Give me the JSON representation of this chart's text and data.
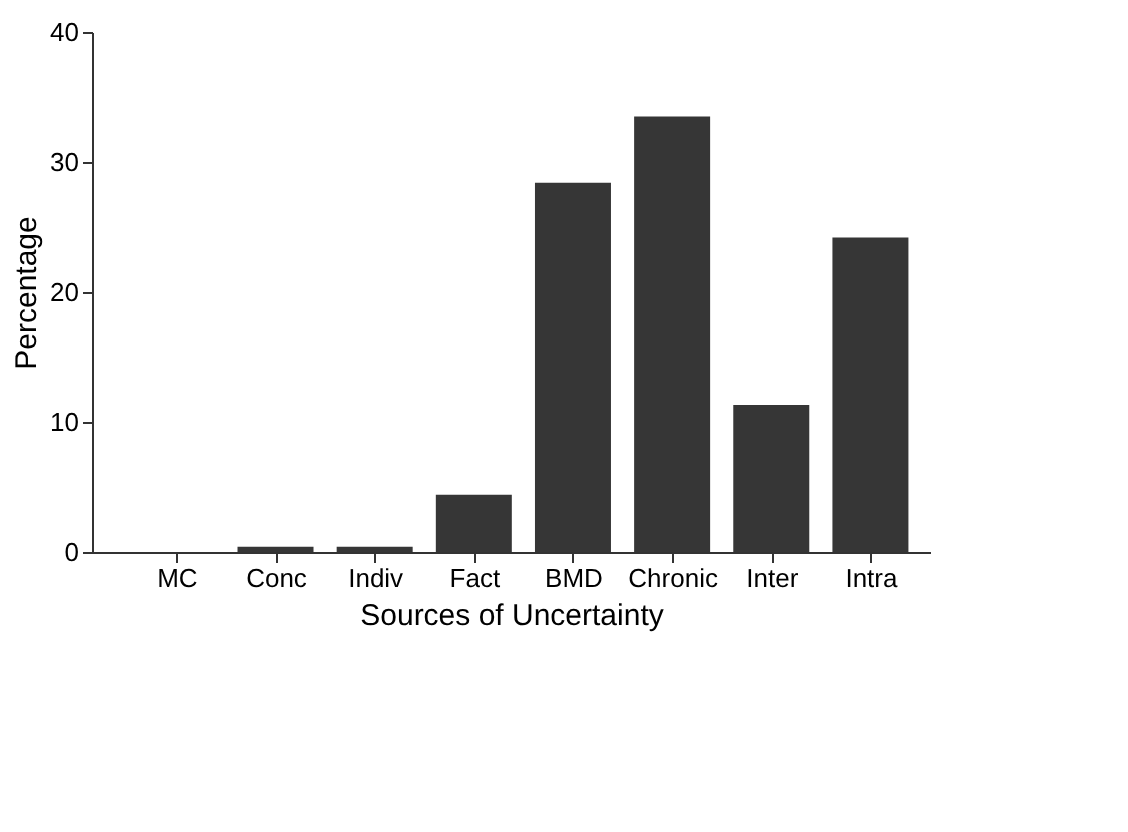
{
  "chart_data": {
    "type": "bar",
    "xlabel": "Sources of Uncertainty",
    "ylabel": "Percentage",
    "categories": [
      "MC",
      "Conc",
      "Indiv",
      "Fact",
      "BMD",
      "Chronic",
      "Inter",
      "Intra"
    ],
    "values": [
      0,
      0.4,
      0.4,
      4.4,
      28.4,
      33.5,
      11.3,
      24.2
    ],
    "color": "#363636",
    "ylim": [
      0,
      40
    ],
    "yticks": [
      0,
      10,
      20,
      30,
      40
    ],
    "grid": false
  }
}
